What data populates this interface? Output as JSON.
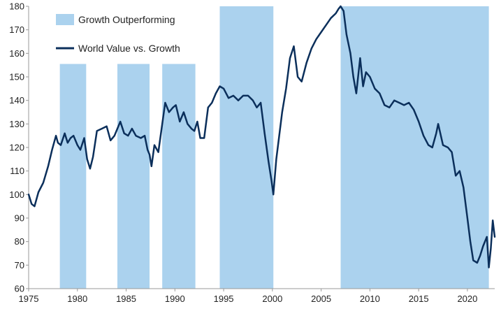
{
  "chart_data": {
    "type": "line",
    "title": "",
    "xlabel": "",
    "ylabel": "",
    "xlim": [
      1975,
      2022.8
    ],
    "ylim": [
      60,
      180
    ],
    "x_ticks": [
      1975,
      1980,
      1985,
      1990,
      1995,
      2000,
      2005,
      2010,
      2015,
      2020
    ],
    "y_ticks": [
      60,
      70,
      80,
      90,
      100,
      110,
      120,
      130,
      140,
      150,
      160,
      170,
      180
    ],
    "grid": false,
    "legend_position": "top-left",
    "colors": {
      "shade": "#abd2ee",
      "line": "#0b2f5b",
      "axis": "#9a9a9a"
    },
    "shaded_periods": {
      "name": "Growth Outperforming",
      "periods": [
        {
          "start": 1978.2,
          "end": 1980.9,
          "top": 155.5
        },
        {
          "start": 1984.1,
          "end": 1987.4,
          "top": 155.5
        },
        {
          "start": 1988.7,
          "end": 1992.1,
          "top": 155.5
        },
        {
          "start": 1994.6,
          "end": 2000.1,
          "top": 180
        },
        {
          "start": 2007.0,
          "end": 2022.2,
          "top": 180
        }
      ]
    },
    "series": [
      {
        "name": "World Value vs. Growth",
        "x": [
          1975.0,
          1975.3,
          1975.6,
          1976.0,
          1976.5,
          1977.0,
          1977.4,
          1977.8,
          1978.0,
          1978.3,
          1978.7,
          1979.0,
          1979.3,
          1979.6,
          1980.0,
          1980.3,
          1980.7,
          1981.0,
          1981.3,
          1981.6,
          1982.0,
          1982.5,
          1983.0,
          1983.4,
          1983.8,
          1984.1,
          1984.4,
          1984.8,
          1985.2,
          1985.6,
          1986.0,
          1986.5,
          1986.9,
          1987.2,
          1987.4,
          1987.6,
          1987.9,
          1988.3,
          1988.7,
          1989.0,
          1989.4,
          1989.8,
          1990.1,
          1990.5,
          1990.9,
          1991.3,
          1991.7,
          1992.0,
          1992.3,
          1992.6,
          1993.0,
          1993.4,
          1993.8,
          1994.2,
          1994.6,
          1995.0,
          1995.5,
          1996.0,
          1996.5,
          1997.0,
          1997.5,
          1998.0,
          1998.4,
          1998.8,
          1999.2,
          1999.6,
          1999.9,
          2000.1,
          2000.4,
          2000.7,
          2001.0,
          2001.4,
          2001.8,
          2002.2,
          2002.6,
          2003.0,
          2003.5,
          2004.0,
          2004.5,
          2005.0,
          2005.5,
          2006.0,
          2006.5,
          2006.8,
          2007.0,
          2007.3,
          2007.6,
          2008.0,
          2008.3,
          2008.6,
          2009.0,
          2009.3,
          2009.6,
          2010.0,
          2010.5,
          2011.0,
          2011.5,
          2012.0,
          2012.5,
          2013.0,
          2013.5,
          2014.0,
          2014.5,
          2015.0,
          2015.5,
          2016.0,
          2016.4,
          2016.8,
          2017.0,
          2017.5,
          2018.0,
          2018.4,
          2018.8,
          2019.2,
          2019.6,
          2020.0,
          2020.3,
          2020.6,
          2021.0,
          2021.3,
          2021.6,
          2022.0,
          2022.2,
          2022.4,
          2022.6,
          2022.8
        ],
        "y": [
          100,
          96,
          95,
          101,
          105,
          112,
          119,
          125,
          122,
          121,
          126,
          122,
          124,
          125,
          121,
          119,
          124,
          115,
          111,
          116,
          127,
          128,
          129,
          123,
          125,
          128,
          131,
          126,
          125,
          128,
          125,
          124,
          125,
          119,
          117,
          112,
          121,
          118,
          130,
          139,
          135,
          137,
          138,
          131,
          135,
          130,
          128,
          127,
          131,
          124,
          124,
          137,
          139,
          143,
          146,
          145,
          141,
          142,
          140,
          142,
          142,
          140,
          137,
          139,
          126,
          114,
          106,
          100,
          115,
          125,
          135,
          145,
          158,
          163,
          150,
          148,
          156,
          162,
          166,
          169,
          172,
          175,
          177,
          179,
          180,
          178,
          168,
          160,
          150,
          143,
          158,
          146,
          152,
          150,
          145,
          143,
          138,
          137,
          140,
          139,
          138,
          139,
          136,
          131,
          125,
          121,
          120,
          126,
          130,
          121,
          120,
          118,
          108,
          110,
          103,
          90,
          80,
          72,
          71,
          74,
          78,
          82,
          69,
          77,
          89,
          82
        ]
      }
    ]
  }
}
